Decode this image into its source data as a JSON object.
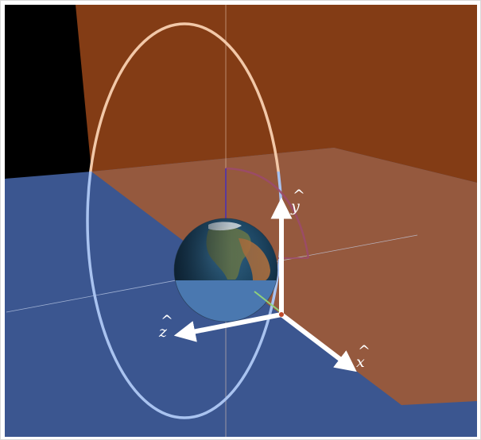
{
  "axes": {
    "x_label": "x",
    "y_label": "y",
    "z_label": "z",
    "hat": "^"
  },
  "colors": {
    "frame_border": "#d8d8d8",
    "space_background": "#000000",
    "vertical_plane": "#833c15",
    "vertical_plane_lit": "#9a5a3a",
    "horizontal_plane": "#3b5690",
    "orbit_upper": "#f2c8a8",
    "orbit_lower": "#a9c3f0",
    "angle_arc": "#9b4a6a",
    "axis_arrow": "#ffffff",
    "earth_ocean": "#2a5a7a",
    "earth_land": "#7a8a5a"
  },
  "icons": {
    "earth": "earth-globe-icon",
    "orbit": "orbit-ellipse",
    "x_axis": "arrow-right-down-icon",
    "y_axis": "arrow-up-icon",
    "z_axis": "arrow-left-icon"
  }
}
